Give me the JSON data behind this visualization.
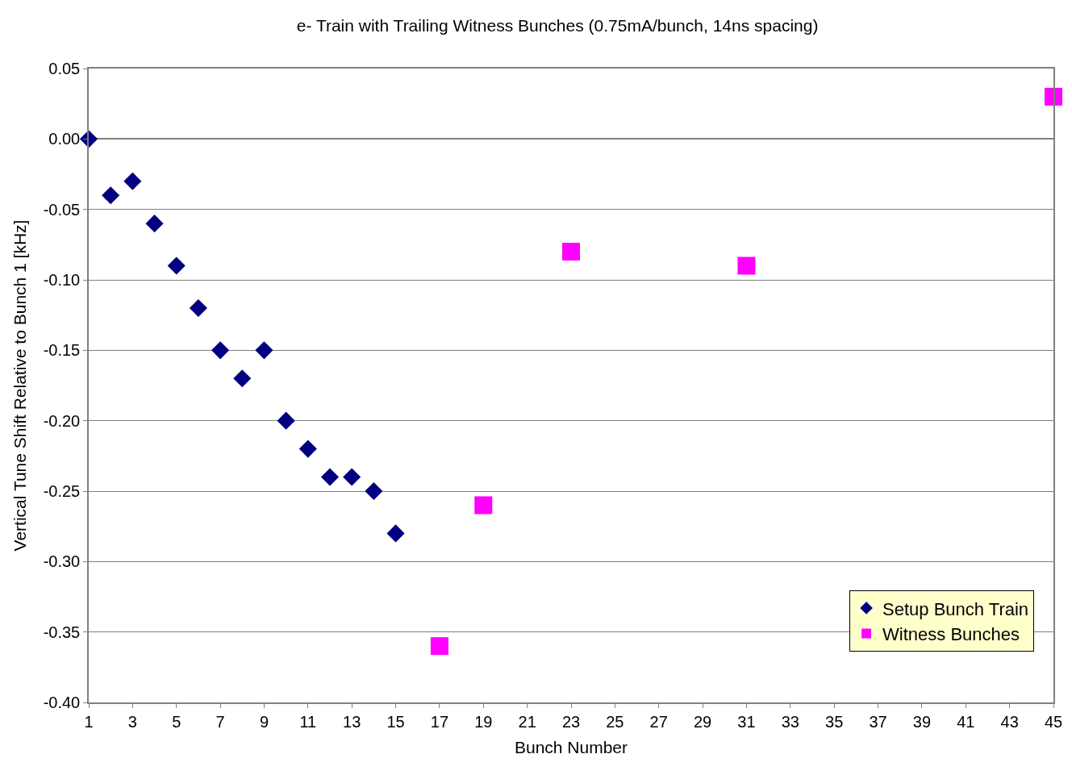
{
  "chart_data": {
    "type": "scatter",
    "title": "e- Train with Trailing Witness Bunches (0.75mA/bunch, 14ns spacing)",
    "xlabel": "Bunch Number",
    "ylabel": "Vertical Tune Shift Relative to Bunch 1 [kHz]",
    "xlim": [
      1,
      45
    ],
    "xticks": [
      1,
      3,
      5,
      7,
      9,
      11,
      13,
      15,
      17,
      19,
      21,
      23,
      25,
      27,
      29,
      31,
      33,
      35,
      37,
      39,
      41,
      43,
      45
    ],
    "ylim": [
      -0.4,
      0.05
    ],
    "yticks": [
      {
        "value": 0.05,
        "label": "0.05"
      },
      {
        "value": 0,
        "label": "0.00"
      },
      {
        "value": -0.05,
        "label": "-0.05"
      },
      {
        "value": -0.1,
        "label": "-0.10"
      },
      {
        "value": -0.15,
        "label": "-0.15"
      },
      {
        "value": -0.2,
        "label": "-0.20"
      },
      {
        "value": -0.25,
        "label": "-0.25"
      },
      {
        "value": -0.3,
        "label": "-0.30"
      },
      {
        "value": -0.35,
        "label": "-0.35"
      },
      {
        "value": -0.4,
        "label": "-0.40"
      }
    ],
    "grid": "y",
    "legend": "bottom right",
    "series": [
      {
        "name": "Setup Bunch Train",
        "color": "#000080",
        "marker": "diamond",
        "x": [
          1,
          2,
          3,
          4,
          5,
          6,
          7,
          8,
          9,
          10,
          11,
          12,
          13,
          14,
          15
        ],
        "values": [
          0,
          -0.04,
          -0.03,
          -0.06,
          -0.09,
          -0.12,
          -0.15,
          -0.17,
          -0.15,
          -0.2,
          -0.22,
          -0.24,
          -0.24,
          -0.25,
          -0.28
        ]
      },
      {
        "name": "Witness Bunches",
        "color": "#ff00ff",
        "marker": "square",
        "x": [
          17,
          19,
          23,
          31,
          45
        ],
        "values": [
          -0.36,
          -0.26,
          -0.08,
          -0.09,
          0.03
        ]
      }
    ]
  }
}
